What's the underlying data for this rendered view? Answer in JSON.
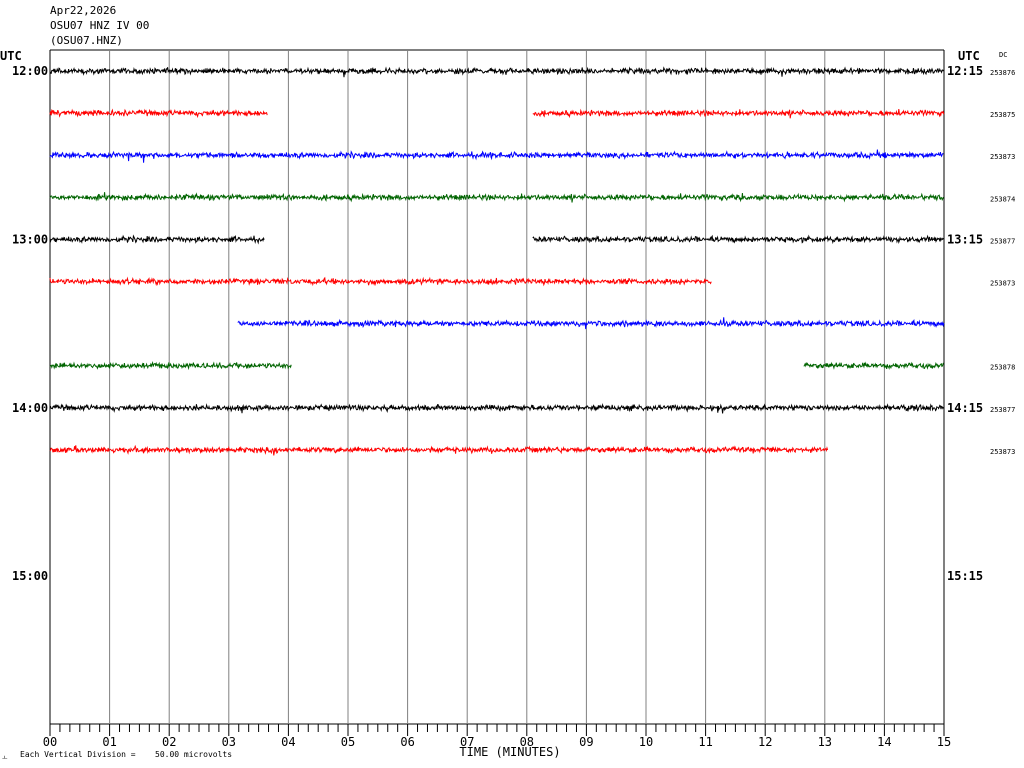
{
  "header": {
    "date": "Apr22,2026",
    "station": "OSU07 HNZ IV 00",
    "channel": "(OSU07.HNZ)"
  },
  "chart_data": {
    "type": "line",
    "title": "",
    "left_axis_label": "UTC",
    "right_axis_label": "UTC",
    "dc_label": "DC",
    "xlabel": "TIME (MINUTES)",
    "xlim": [
      0,
      15
    ],
    "x_ticks": [
      "00",
      "01",
      "02",
      "03",
      "04",
      "05",
      "06",
      "07",
      "08",
      "09",
      "10",
      "11",
      "12",
      "13",
      "14",
      "15"
    ],
    "grid": true,
    "scale_note": "Each Vertical Division =",
    "scale_value": "50.00 microvolts",
    "corner_mark": "ㅗ",
    "hour_labels": [
      {
        "row": 0,
        "left": "12:00",
        "right": "12:15"
      },
      {
        "row": 4,
        "left": "13:00",
        "right": "13:15"
      },
      {
        "row": 8,
        "left": "14:00",
        "right": "14:15"
      },
      {
        "row": 12,
        "left": "15:00",
        "right": "15:15"
      }
    ],
    "traces": [
      {
        "row": 0,
        "color": "#000000",
        "dc": "253876",
        "segments": [
          [
            0,
            15
          ]
        ]
      },
      {
        "row": 1,
        "color": "#ff0000",
        "dc": "253875",
        "segments": [
          [
            0,
            3.65
          ],
          [
            8.1,
            15
          ]
        ]
      },
      {
        "row": 2,
        "color": "#0000ff",
        "dc": "253873",
        "segments": [
          [
            0,
            15
          ]
        ]
      },
      {
        "row": 3,
        "color": "#006400",
        "dc": "253874",
        "segments": [
          [
            0,
            15
          ]
        ]
      },
      {
        "row": 4,
        "color": "#000000",
        "dc": "253877",
        "segments": [
          [
            0,
            3.6
          ],
          [
            8.1,
            15
          ]
        ]
      },
      {
        "row": 5,
        "color": "#ff0000",
        "dc": "253873",
        "segments": [
          [
            0,
            11.1
          ]
        ]
      },
      {
        "row": 6,
        "color": "#0000ff",
        "dc": "",
        "segments": [
          [
            3.15,
            15
          ]
        ]
      },
      {
        "row": 7,
        "color": "#006400",
        "dc": "253878",
        "segments": [
          [
            0,
            4.05
          ],
          [
            12.65,
            15
          ]
        ]
      },
      {
        "row": 8,
        "color": "#000000",
        "dc": "253877",
        "segments": [
          [
            0,
            15
          ]
        ]
      },
      {
        "row": 9,
        "color": "#ff0000",
        "dc": "253873",
        "segments": [
          [
            0,
            13.05
          ]
        ]
      }
    ]
  }
}
